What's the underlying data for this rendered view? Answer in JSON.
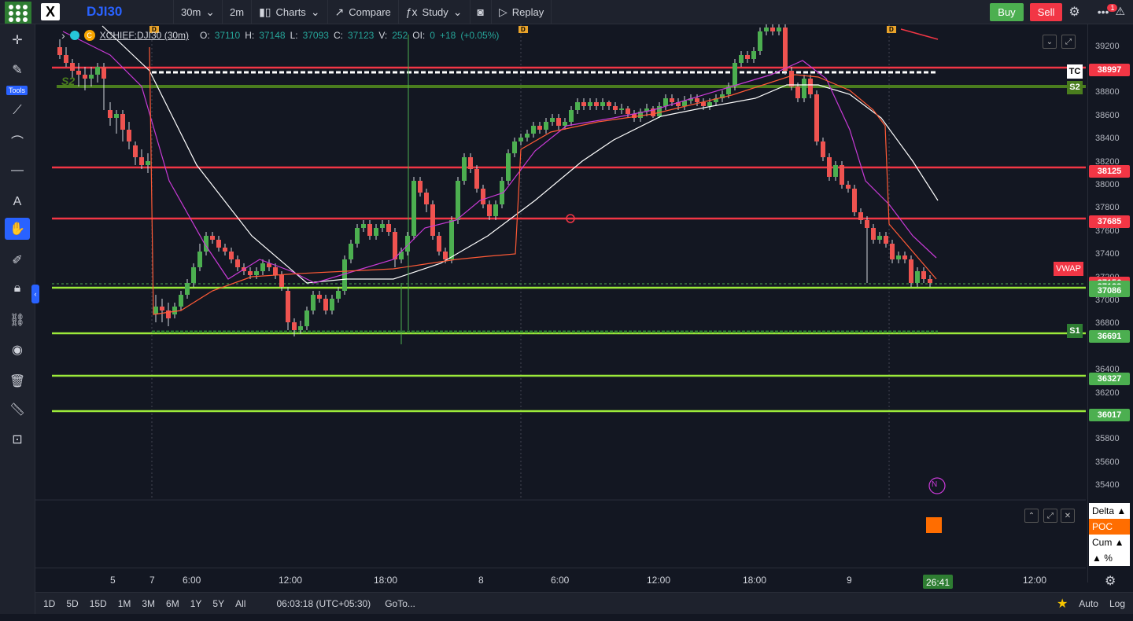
{
  "toolbar": {
    "symbol": "DJI30",
    "interval": "30m",
    "interval2": "2m",
    "charts": "Charts",
    "compare": "Compare",
    "study": "Study",
    "replay": "Replay",
    "buy": "Buy",
    "sell": "Sell",
    "alert_badge": "1"
  },
  "left_tools": {
    "tools_label": "Tools"
  },
  "legend": {
    "name": "XCHIEF:DJI30 (30m)",
    "o_label": "O:",
    "o": "37110",
    "h_label": "H:",
    "h": "37148",
    "l_label": "L:",
    "l": "37093",
    "c_label": "C:",
    "c": "37123",
    "v_label": "V:",
    "v": "252",
    "oi_label": "OI:",
    "oi": "0",
    "change": "+18",
    "change_pct": "(+0.05%)"
  },
  "price_axis": {
    "ticks": [
      "39200",
      "39000",
      "38800",
      "38600",
      "38400",
      "38200",
      "38000",
      "37800",
      "37600",
      "37400",
      "37200",
      "37000",
      "36800",
      "36400",
      "36200",
      "35800",
      "35600",
      "35400"
    ],
    "tags": [
      {
        "price": "38997",
        "color": "#f23645"
      },
      {
        "price": "38125",
        "color": "#f23645"
      },
      {
        "price": "37685",
        "color": "#f23645"
      },
      {
        "price": "37156",
        "color": "#f23645"
      },
      {
        "price": "37123",
        "color": "#4caf50"
      },
      {
        "price": "37086",
        "color": "#4caf50"
      },
      {
        "price": "36691",
        "color": "#4caf50"
      },
      {
        "price": "36327",
        "color": "#4caf50"
      },
      {
        "price": "36017",
        "color": "#4caf50"
      }
    ],
    "vwap": "VWAP",
    "tc": "TC",
    "s2": "S2",
    "s1": "S1"
  },
  "time_axis": {
    "labels": [
      "5",
      "7",
      "6:00",
      "12:00",
      "18:00",
      "8",
      "6:00",
      "12:00",
      "18:00",
      "9",
      "12:00"
    ],
    "countdown": "26:41"
  },
  "subpane": {
    "delta": "Delta ▲",
    "poc": "POC",
    "cum": "Cum ▲",
    "pct": "▲ %"
  },
  "bottom_bar": {
    "ranges": [
      "1D",
      "5D",
      "15D",
      "1M",
      "3M",
      "6M",
      "1Y",
      "5Y",
      "All"
    ],
    "clock": "06:03:18 (UTC+05:30)",
    "goto": "GoTo...",
    "auto": "Auto",
    "log": "Log"
  },
  "chart_labels": {
    "s2_left": "S2",
    "d_marker": "D",
    "n_marker": "N"
  }
}
